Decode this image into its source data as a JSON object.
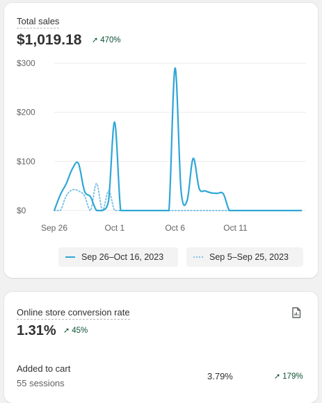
{
  "sales": {
    "title": "Total sales",
    "value": "$1,019.18",
    "delta": "470%",
    "legend": {
      "current": "Sep 26–Oct 16, 2023",
      "previous": "Sep 5–Sep 25, 2023"
    }
  },
  "chart_data": {
    "type": "line",
    "x": [
      0,
      0.5,
      1,
      1.5,
      2,
      2.5,
      3,
      3.5,
      4,
      4.5,
      5,
      5.5,
      6,
      6.5,
      7,
      7.5,
      8,
      8.5,
      9,
      9.5,
      10,
      10.5,
      11,
      11.5,
      12,
      12.5,
      13,
      13.5,
      14,
      14.5,
      15,
      15.5,
      16,
      16.5,
      17,
      17.5,
      18,
      18.5,
      19,
      19.5,
      20,
      20.5
    ],
    "x_tick_labels": [
      "Sep 26",
      "Oct 1",
      "Oct 6",
      "Oct 11"
    ],
    "x_tick_positions": [
      0,
      5,
      10,
      15
    ],
    "y_tick_labels": [
      "$0",
      "$100",
      "$200",
      "$300"
    ],
    "ylim": [
      0,
      300
    ],
    "series": [
      {
        "name": "Sep 26–Oct 16, 2023",
        "color": "#2fa6d6",
        "style": "solid",
        "values": [
          0,
          32,
          55,
          85,
          96,
          40,
          28,
          0,
          0,
          20,
          180,
          0,
          0,
          0,
          0,
          0,
          0,
          0,
          0,
          0,
          290,
          40,
          20,
          106,
          45,
          40,
          36,
          35,
          34,
          0,
          0,
          0,
          0,
          0,
          0,
          0,
          0,
          0,
          0,
          0,
          0,
          0
        ]
      },
      {
        "name": "Sep 5–Sep 25, 2023",
        "color": "#7fc3e3",
        "style": "dotted",
        "values": [
          0,
          0,
          30,
          42,
          40,
          30,
          0,
          55,
          0,
          40,
          0,
          0,
          0,
          0,
          0,
          0,
          0,
          0,
          0,
          0,
          0,
          0,
          0,
          0,
          0,
          0,
          0,
          0,
          0,
          0,
          0,
          0,
          0,
          0,
          0,
          0,
          0,
          0,
          0,
          0,
          0,
          0
        ]
      }
    ],
    "grid": true
  },
  "conversion": {
    "title": "Online store conversion rate",
    "value": "1.31%",
    "delta": "45%",
    "rows": [
      {
        "label": "Added to cart",
        "sub": "55 sessions",
        "value": "3.79%",
        "delta": "179%"
      }
    ]
  },
  "icons": {
    "report": "report-file-icon",
    "up_arrow": "arrow-up-right-icon"
  },
  "colors": {
    "positive": "#0c5132",
    "series_current": "#2fa6d6",
    "series_previous": "#7fc3e3"
  }
}
